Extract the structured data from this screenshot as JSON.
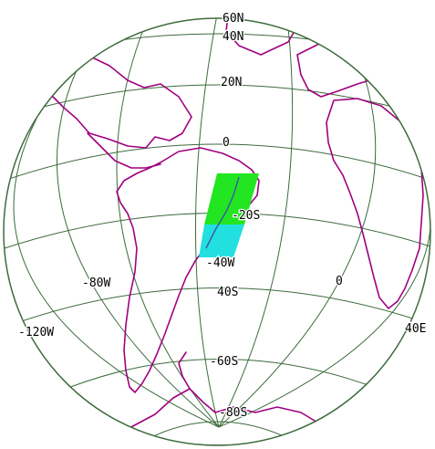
{
  "map": {
    "projection": "orthographic",
    "colors": {
      "graticule": "#3d6b3d",
      "coastline": "#a0007f",
      "swath_north": "#22e622",
      "swath_south": "#22e0e0",
      "background": "#ffffff"
    },
    "labels": {
      "lat_60n": "60N",
      "lat_40n": "40N",
      "lat_20n": "20N",
      "lat_0": "0",
      "lat_20s": "-20S",
      "lat_40s": "40S",
      "lat_60s": "-60S",
      "lat_80s": "-80S",
      "lon_120w": "-120W",
      "lon_80w": "-80W",
      "lon_40w": "-40W",
      "lon_0": "0",
      "lon_40e": "40E"
    }
  }
}
